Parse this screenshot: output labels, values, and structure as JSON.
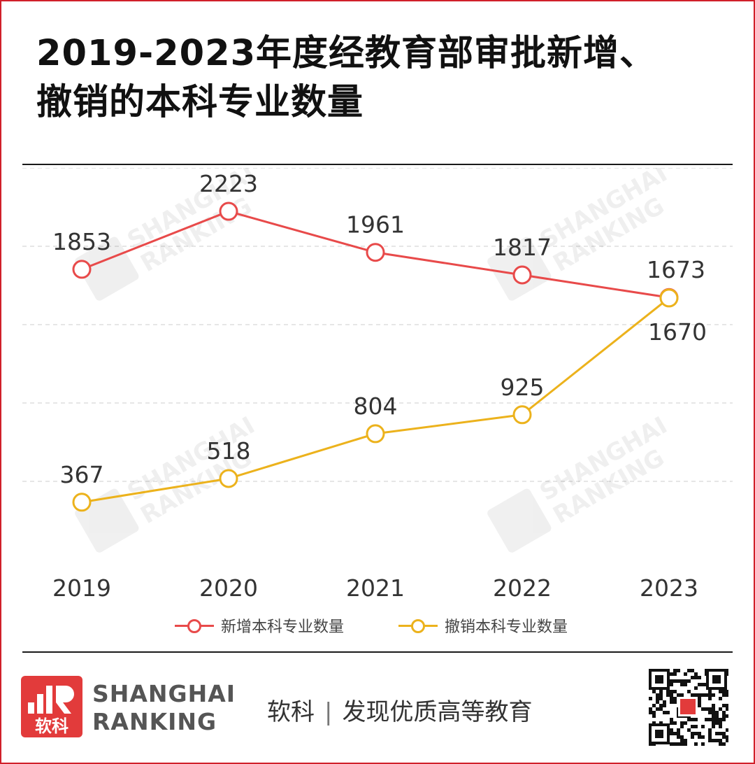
{
  "title": {
    "line1": "2019-2023年度经教育部审批新增、",
    "line2": "撤销的本科专业数量"
  },
  "colors": {
    "frame": "#d0202a",
    "series_new": "#e84a4a",
    "series_revoked": "#ecb21c",
    "brand_red": "#e23b3b"
  },
  "chart_data": {
    "type": "line",
    "categories": [
      "2019",
      "2020",
      "2021",
      "2022",
      "2023"
    ],
    "series": [
      {
        "name": "新增本科专业数量",
        "values": [
          1853,
          2223,
          1961,
          1817,
          1673
        ],
        "color": "#e84a4a"
      },
      {
        "name": "撤销本科专业数量",
        "values": [
          367,
          518,
          804,
          925,
          1670
        ],
        "color": "#ecb21c"
      }
    ],
    "ylim": [
      0,
      2500
    ],
    "grid": true,
    "legend": "bottom"
  },
  "watermark": {
    "line1": "SHANGHAI",
    "line2": "RANKING",
    "cn": "软科"
  },
  "footer": {
    "logo_text": "软科",
    "brand_line1": "SHANGHAI",
    "brand_line2": "RANKING",
    "slogan_name": "软科",
    "slogan_sep": "|",
    "slogan_text": "发现优质高等教育",
    "qr_icon": "qr-code-icon"
  }
}
